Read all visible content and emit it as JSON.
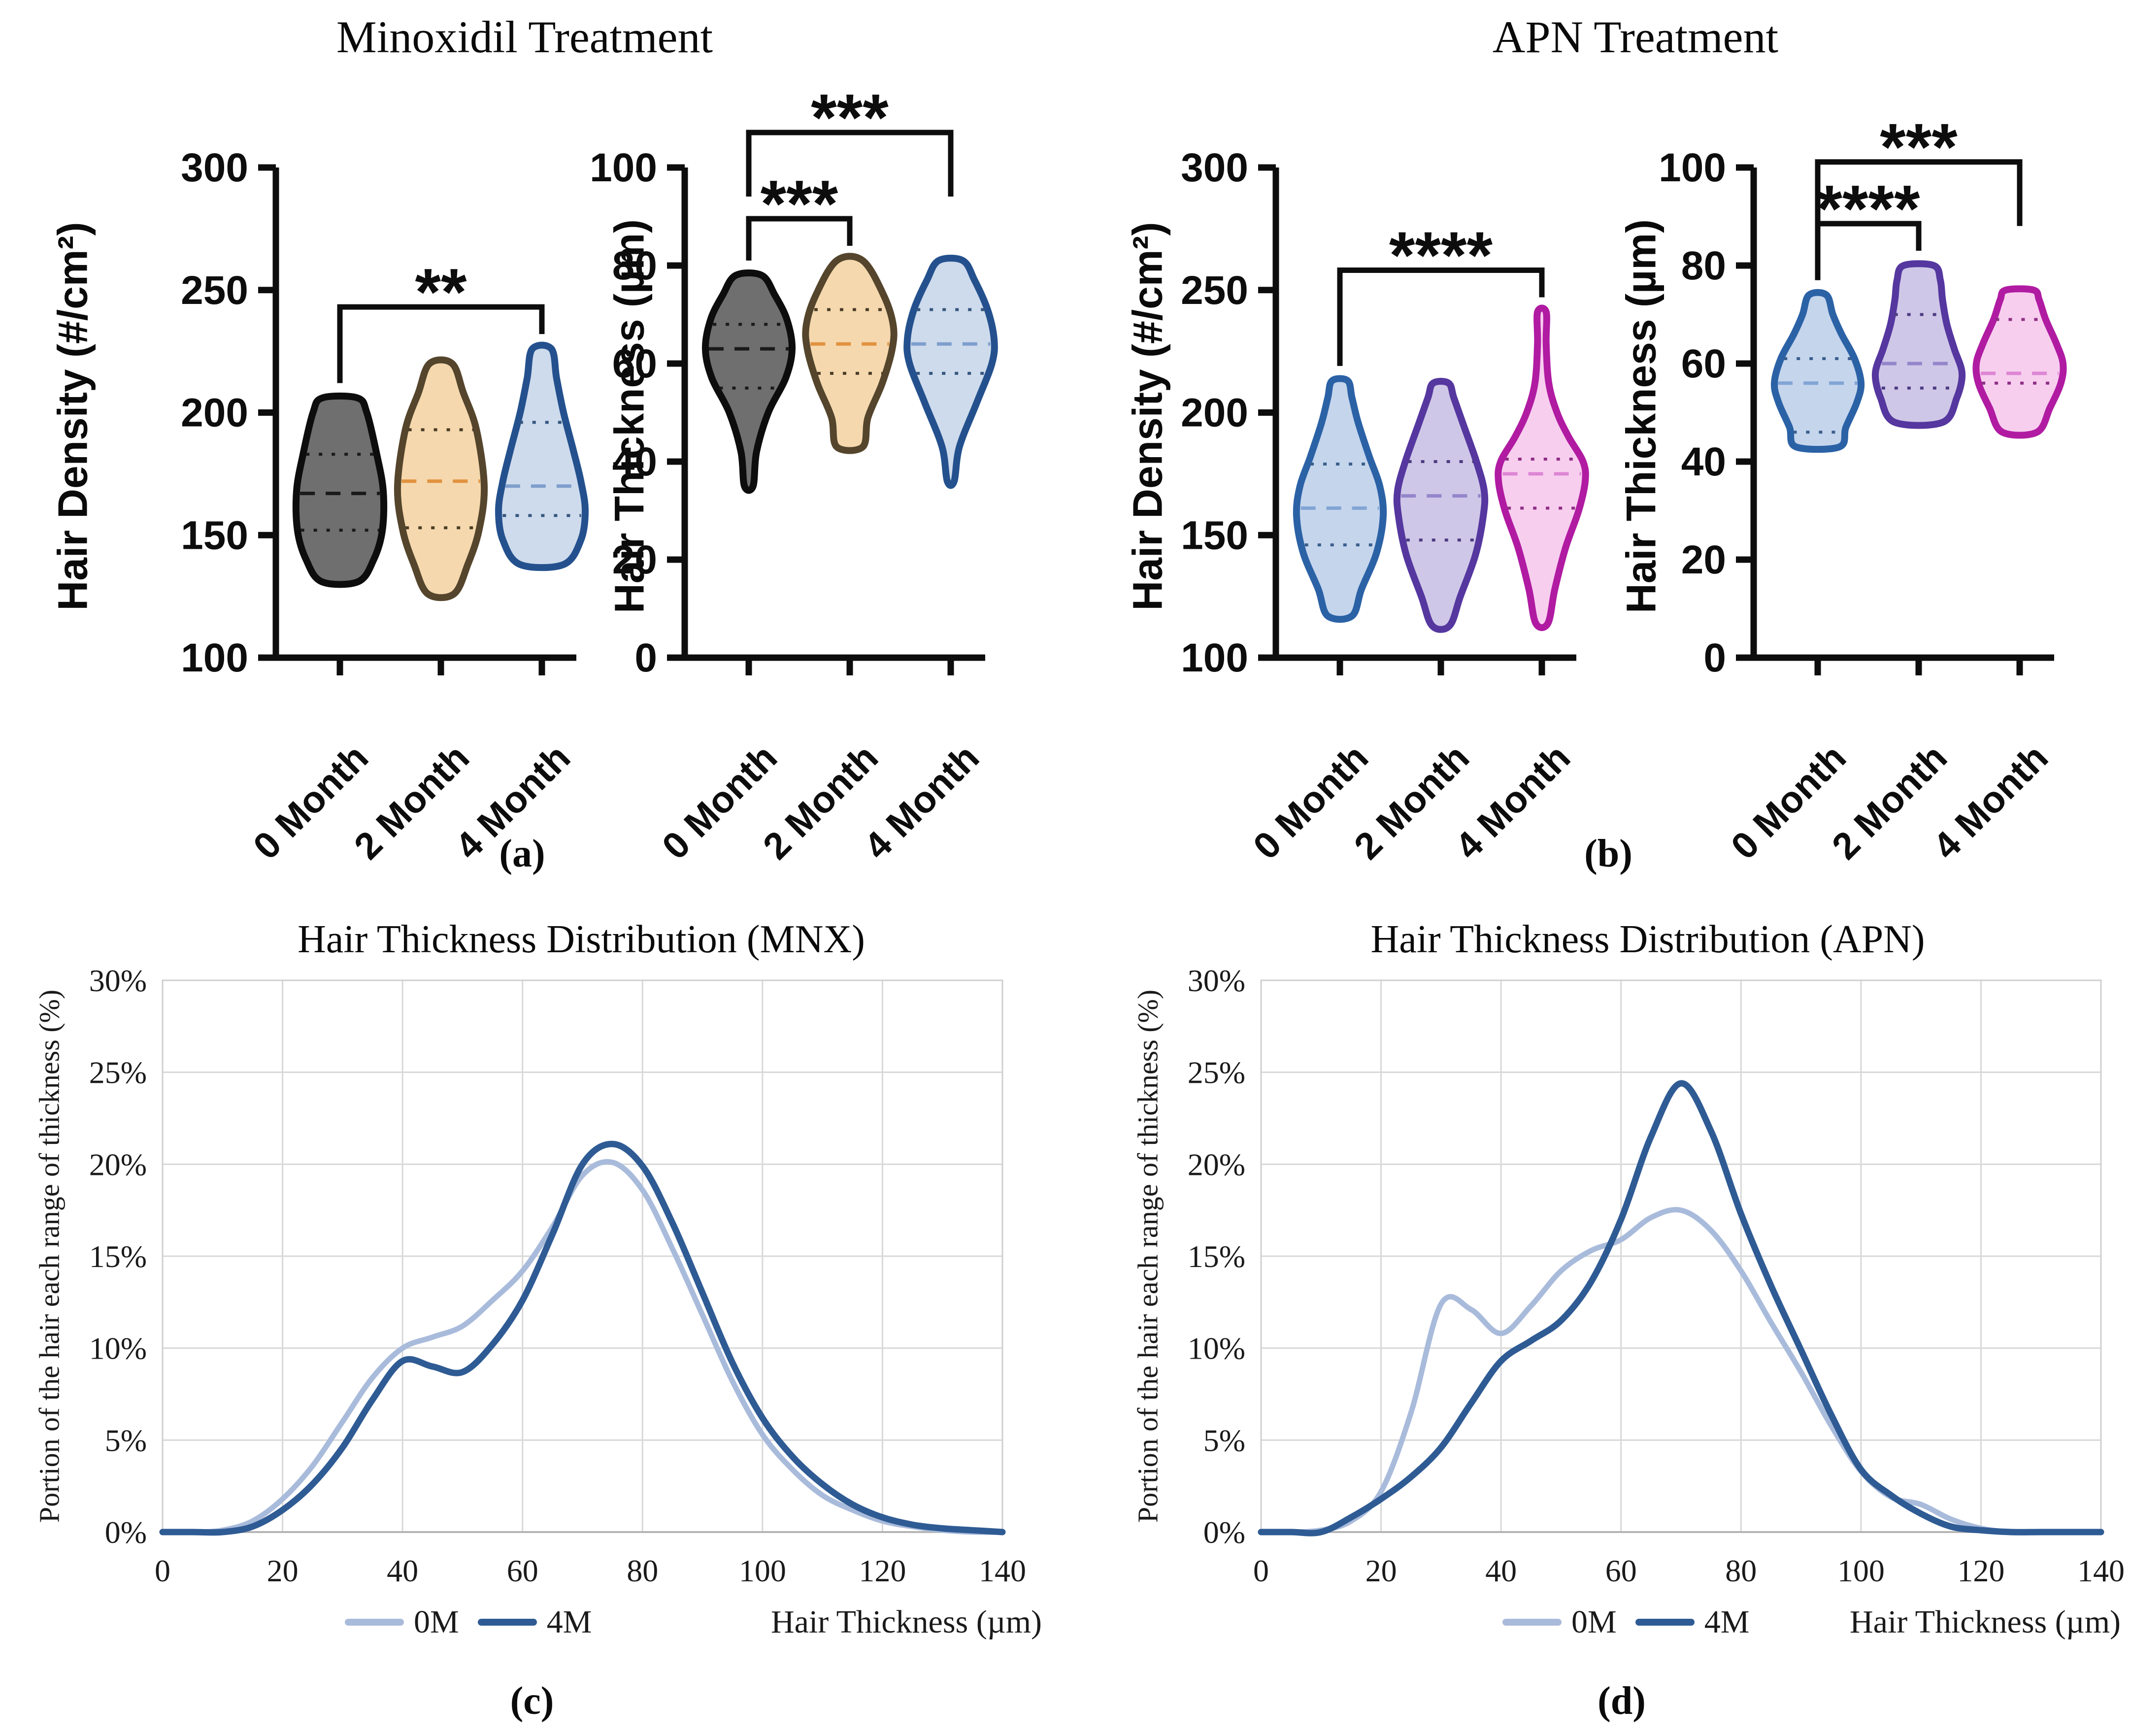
{
  "panels": {
    "a": {
      "title": "Minoxidil Treatment",
      "label": "(a)"
    },
    "b": {
      "title": "APN Treatment",
      "label": "(b)"
    },
    "c": {
      "label": "(c)"
    },
    "d": {
      "label": "(d)"
    }
  },
  "chart_data": [
    {
      "id": "mnx-density",
      "type": "violin",
      "panel": "a",
      "treatment": "Minoxidil",
      "ylabel": "Hair Density (#/cm²)",
      "ylim": [
        100,
        300
      ],
      "yticks": [
        100,
        150,
        200,
        250,
        300
      ],
      "categories": [
        "0 Month",
        "2 Month",
        "4 Month"
      ],
      "violins": [
        {
          "category": "0 Month",
          "min": 131,
          "q1": 152,
          "median": 167,
          "q3": 183,
          "max": 206,
          "fill": "#6F6F6F",
          "stroke": "#0D0D0D",
          "median_color": "#1A1A1A",
          "quartile_color": "#1A1A1A",
          "profile": [
            [
              131,
              0.42
            ],
            [
              140,
              0.78
            ],
            [
              152,
              0.98
            ],
            [
              168,
              1.0
            ],
            [
              183,
              0.85
            ],
            [
              200,
              0.62
            ],
            [
              206,
              0.4
            ]
          ]
        },
        {
          "category": "2 Month",
          "min": 126,
          "q1": 153,
          "median": 172,
          "q3": 193,
          "max": 220,
          "fill": "#F5D8AE",
          "stroke": "#54452C",
          "median_color": "#E2923F",
          "quartile_color": "#4A3C26",
          "profile": [
            [
              126,
              0.3
            ],
            [
              138,
              0.62
            ],
            [
              152,
              0.88
            ],
            [
              170,
              1.0
            ],
            [
              193,
              0.82
            ],
            [
              208,
              0.52
            ],
            [
              220,
              0.26
            ]
          ]
        },
        {
          "category": "4 Month",
          "min": 138,
          "q1": 158,
          "median": 170,
          "q3": 196,
          "max": 226,
          "fill": "#CEDBEC",
          "stroke": "#24518E",
          "median_color": "#7E9FCC",
          "quartile_color": "#35567E",
          "profile": [
            [
              138,
              0.5
            ],
            [
              148,
              0.9
            ],
            [
              160,
              1.0
            ],
            [
              172,
              0.9
            ],
            [
              185,
              0.72
            ],
            [
              200,
              0.5
            ],
            [
              214,
              0.34
            ],
            [
              226,
              0.22
            ]
          ]
        }
      ],
      "significance": [
        {
          "from": 0,
          "to": 2,
          "label": "**",
          "level": 1
        }
      ]
    },
    {
      "id": "mnx-thickness",
      "type": "violin",
      "panel": "a",
      "treatment": "Minoxidil",
      "ylabel": "Hair Thickness (µm)",
      "ylim": [
        0,
        100
      ],
      "yticks": [
        0,
        20,
        40,
        60,
        80,
        100
      ],
      "categories": [
        "0 Month",
        "2 Month",
        "4 Month"
      ],
      "violins": [
        {
          "category": "0 Month",
          "min": 35,
          "q1": 55,
          "median": 63,
          "q3": 68,
          "max": 78,
          "fill": "#6F6F6F",
          "stroke": "#0D0D0D",
          "median_color": "#1A1A1A",
          "quartile_color": "#1A1A1A",
          "profile": [
            [
              35,
              0.1
            ],
            [
              42,
              0.18
            ],
            [
              50,
              0.45
            ],
            [
              57,
              0.85
            ],
            [
              63,
              1.0
            ],
            [
              69,
              0.88
            ],
            [
              74,
              0.6
            ],
            [
              78,
              0.3
            ]
          ]
        },
        {
          "category": "2 Month",
          "min": 43,
          "q1": 58,
          "median": 64,
          "q3": 71,
          "max": 81,
          "fill": "#F5D8AE",
          "stroke": "#54452C",
          "median_color": "#E2923F",
          "quartile_color": "#4A3C26",
          "profile": [
            [
              43,
              0.3
            ],
            [
              49,
              0.42
            ],
            [
              56,
              0.75
            ],
            [
              63,
              0.98
            ],
            [
              68,
              1.0
            ],
            [
              74,
              0.78
            ],
            [
              81,
              0.3
            ]
          ]
        },
        {
          "category": "4 Month",
          "min": 36,
          "q1": 58,
          "median": 64,
          "q3": 71,
          "max": 81,
          "fill": "#CEDBEC",
          "stroke": "#24518E",
          "median_color": "#7E9FCC",
          "quartile_color": "#35567E",
          "profile": [
            [
              36,
              0.08
            ],
            [
              43,
              0.2
            ],
            [
              52,
              0.6
            ],
            [
              60,
              0.95
            ],
            [
              65,
              1.0
            ],
            [
              71,
              0.85
            ],
            [
              77,
              0.55
            ],
            [
              81,
              0.28
            ]
          ]
        }
      ],
      "significance": [
        {
          "from": 0,
          "to": 1,
          "label": "***",
          "level": 1
        },
        {
          "from": 0,
          "to": 2,
          "label": "***",
          "level": 2
        }
      ]
    },
    {
      "id": "apn-density",
      "type": "violin",
      "panel": "b",
      "treatment": "APN",
      "ylabel": "Hair Density (#/cm²)",
      "ylim": [
        100,
        300
      ],
      "yticks": [
        100,
        150,
        200,
        250,
        300
      ],
      "categories": [
        "0 Month",
        "2 Month",
        "4 Month"
      ],
      "violins": [
        {
          "category": "0 Month",
          "min": 117,
          "q1": 146,
          "median": 161,
          "q3": 179,
          "max": 213,
          "fill": "#C5D5EC",
          "stroke": "#2B62A6",
          "median_color": "#82A5D4",
          "quartile_color": "#3B5F8E",
          "profile": [
            [
              117,
              0.28
            ],
            [
              128,
              0.5
            ],
            [
              143,
              0.85
            ],
            [
              158,
              1.0
            ],
            [
              170,
              0.92
            ],
            [
              182,
              0.68
            ],
            [
              196,
              0.42
            ],
            [
              206,
              0.28
            ],
            [
              213,
              0.18
            ]
          ]
        },
        {
          "category": "2 Month",
          "min": 113,
          "q1": 148,
          "median": 166,
          "q3": 180,
          "max": 212,
          "fill": "#CFC7E7",
          "stroke": "#55379F",
          "median_color": "#9486CB",
          "quartile_color": "#4C3C82",
          "profile": [
            [
              113,
              0.2
            ],
            [
              125,
              0.45
            ],
            [
              142,
              0.8
            ],
            [
              158,
              0.98
            ],
            [
              168,
              1.0
            ],
            [
              180,
              0.82
            ],
            [
              195,
              0.52
            ],
            [
              206,
              0.3
            ],
            [
              212,
              0.18
            ]
          ]
        },
        {
          "category": "4 Month",
          "min": 114,
          "q1": 161,
          "median": 175,
          "q3": 181,
          "max": 241,
          "fill": "#F8CEEF",
          "stroke": "#B01BA2",
          "median_color": "#DD86D4",
          "quartile_color": "#8E2F84",
          "profile": [
            [
              114,
              0.14
            ],
            [
              128,
              0.3
            ],
            [
              145,
              0.55
            ],
            [
              160,
              0.85
            ],
            [
              172,
              1.0
            ],
            [
              180,
              0.95
            ],
            [
              190,
              0.62
            ],
            [
              200,
              0.35
            ],
            [
              212,
              0.16
            ],
            [
              228,
              0.1
            ],
            [
              241,
              0.1
            ]
          ]
        }
      ],
      "significance": [
        {
          "from": 0,
          "to": 2,
          "label": "****",
          "level": 1
        }
      ]
    },
    {
      "id": "apn-thickness",
      "type": "violin",
      "panel": "b",
      "treatment": "APN",
      "ylabel": "Hair Thickness (µm)",
      "ylim": [
        0,
        100
      ],
      "yticks": [
        0,
        20,
        40,
        60,
        80,
        100
      ],
      "categories": [
        "0 Month",
        "2 Month",
        "4 Month"
      ],
      "violins": [
        {
          "category": "0 Month",
          "min": 43,
          "q1": 46,
          "median": 56,
          "q3": 61,
          "max": 74,
          "fill": "#C5D5EC",
          "stroke": "#2B62A6",
          "median_color": "#82A5D4",
          "quartile_color": "#3B5F8E",
          "profile": [
            [
              43,
              0.5
            ],
            [
              47,
              0.65
            ],
            [
              52,
              0.9
            ],
            [
              56,
              1.0
            ],
            [
              61,
              0.85
            ],
            [
              66,
              0.55
            ],
            [
              70,
              0.35
            ],
            [
              74,
              0.2
            ]
          ]
        },
        {
          "category": "2 Month",
          "min": 48,
          "q1": 55,
          "median": 60,
          "q3": 70,
          "max": 80,
          "fill": "#CFC7E7",
          "stroke": "#55379F",
          "median_color": "#9486CB",
          "quartile_color": "#4C3C82",
          "profile": [
            [
              48,
              0.55
            ],
            [
              53,
              0.88
            ],
            [
              58,
              1.0
            ],
            [
              63,
              0.82
            ],
            [
              68,
              0.65
            ],
            [
              73,
              0.55
            ],
            [
              77,
              0.5
            ],
            [
              80,
              0.35
            ]
          ]
        },
        {
          "category": "4 Month",
          "min": 46,
          "q1": 56,
          "median": 58,
          "q3": 69,
          "max": 75,
          "fill": "#F8CEEF",
          "stroke": "#B01BA2",
          "median_color": "#DD86D4",
          "quartile_color": "#8E2F84",
          "profile": [
            [
              46,
              0.4
            ],
            [
              51,
              0.7
            ],
            [
              56,
              0.95
            ],
            [
              60,
              1.0
            ],
            [
              64,
              0.85
            ],
            [
              69,
              0.6
            ],
            [
              73,
              0.45
            ],
            [
              75,
              0.32
            ]
          ]
        }
      ],
      "significance": [
        {
          "from": 0,
          "to": 1,
          "label": "****",
          "level": 1
        },
        {
          "from": 0,
          "to": 2,
          "label": "***",
          "level": 2
        }
      ]
    },
    {
      "id": "mnx-distribution",
      "type": "line",
      "panel": "c",
      "title": "Hair Thickness Distribution (MNX)",
      "xlabel": "Hair Thickness  (µm)",
      "ylabel": "Portion of the hair each range of thickness  (%)",
      "xlim": [
        0,
        140
      ],
      "xticks": [
        0,
        20,
        40,
        60,
        80,
        100,
        120,
        140
      ],
      "ylim": [
        0,
        30
      ],
      "yticks": [
        0,
        5,
        10,
        15,
        20,
        25,
        30
      ],
      "grid": true,
      "legend_position": "bottom",
      "x": [
        0,
        5,
        10,
        15,
        20,
        25,
        30,
        35,
        40,
        45,
        50,
        55,
        60,
        65,
        70,
        75,
        80,
        85,
        90,
        95,
        100,
        105,
        110,
        115,
        120,
        125,
        130,
        135,
        140
      ],
      "series": [
        {
          "name": "0M",
          "color": "#A9BBDB",
          "values": [
            0,
            0,
            0.1,
            0.6,
            1.8,
            3.6,
            6.0,
            8.4,
            10.0,
            10.6,
            11.2,
            12.6,
            14.2,
            16.6,
            19.4,
            20.1,
            18.6,
            15.4,
            11.8,
            8.2,
            5.3,
            3.4,
            2.0,
            1.2,
            0.6,
            0.3,
            0.1,
            0,
            0
          ]
        },
        {
          "name": "4M",
          "color": "#2F5B94",
          "values": [
            0,
            0,
            0,
            0.3,
            1.2,
            2.6,
            4.6,
            7.2,
            9.3,
            9.0,
            8.7,
            10.2,
            12.6,
            16.2,
            20.0,
            21.1,
            19.9,
            16.8,
            13.0,
            9.2,
            6.2,
            4.1,
            2.6,
            1.5,
            0.8,
            0.4,
            0.2,
            0.1,
            0
          ]
        }
      ]
    },
    {
      "id": "apn-distribution",
      "type": "line",
      "panel": "d",
      "title": "Hair Thickness Distribution (APN)",
      "xlabel": "Hair Thickness  (µm)",
      "ylabel": "Portion of the hair each range of thickness  (%)",
      "xlim": [
        0,
        140
      ],
      "xticks": [
        0,
        20,
        40,
        60,
        80,
        100,
        120,
        140
      ],
      "ylim": [
        0,
        30
      ],
      "yticks": [
        0,
        5,
        10,
        15,
        20,
        25,
        30
      ],
      "grid": true,
      "legend_position": "bottom",
      "x": [
        0,
        5,
        10,
        15,
        20,
        25,
        30,
        35,
        40,
        45,
        50,
        55,
        60,
        65,
        70,
        75,
        80,
        85,
        90,
        95,
        100,
        105,
        110,
        115,
        120,
        125,
        130,
        135,
        140
      ],
      "series": [
        {
          "name": "0M",
          "color": "#A9BBDB",
          "values": [
            0,
            0,
            0.1,
            0.6,
            2.2,
            6.5,
            12.4,
            12.1,
            10.8,
            12.3,
            14.2,
            15.3,
            15.9,
            17.1,
            17.5,
            16.4,
            14.2,
            11.4,
            8.7,
            5.8,
            3.3,
            1.9,
            1.5,
            0.7,
            0.2,
            0,
            0,
            0,
            0
          ]
        },
        {
          "name": "4M",
          "color": "#2F5B94",
          "values": [
            0,
            0,
            0,
            0.8,
            1.8,
            3.0,
            4.6,
            7.0,
            9.3,
            10.4,
            11.5,
            13.6,
            17.0,
            21.5,
            24.4,
            21.8,
            17.3,
            13.4,
            9.9,
            6.4,
            3.4,
            2.0,
            1.0,
            0.3,
            0.1,
            0,
            0,
            0,
            0
          ]
        }
      ]
    }
  ]
}
